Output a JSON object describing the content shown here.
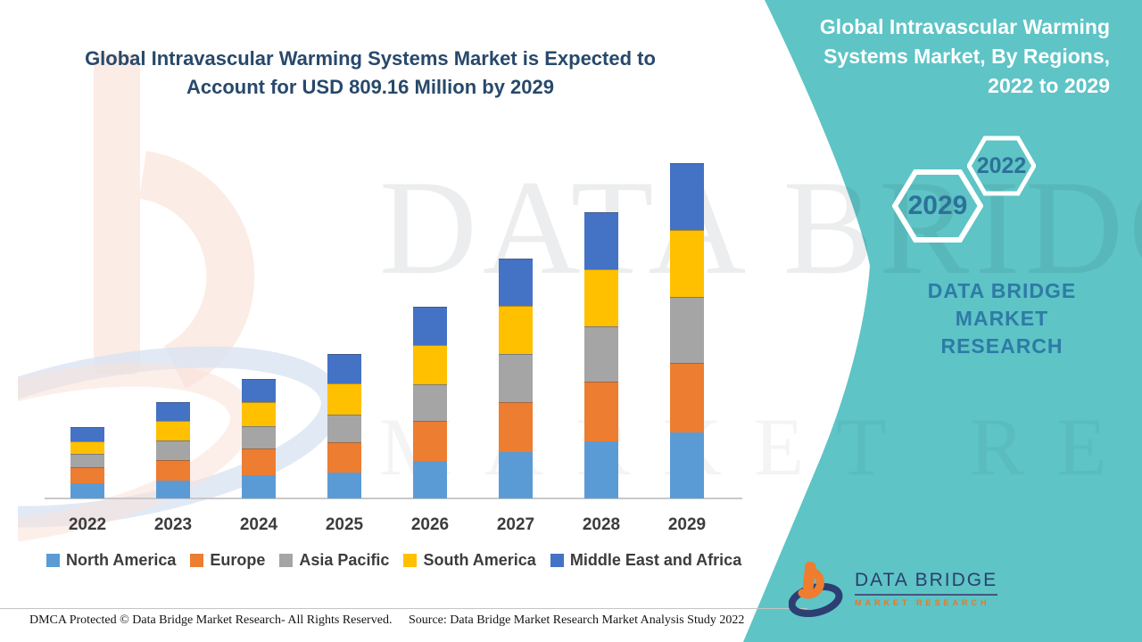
{
  "header": {
    "left_title_line1": "Global Intravascular Warming Systems Market is Expected to",
    "left_title_line2": "Account for USD 809.16 Million by 2029"
  },
  "side_panel": {
    "title": "Global Intravascular Warming Systems Market, By Regions, 2022 to 2029",
    "hex_small_label": "2022",
    "hex_large_label": "2029",
    "brand_line1": "DATA BRIDGE MARKET",
    "brand_line2": "RESEARCH"
  },
  "watermark": {
    "line1": "DATA BRIDGE",
    "line2": "MARKET RESEARCH"
  },
  "logo": {
    "name": "DATA BRIDGE",
    "tagline": "MARKET RESEARCH"
  },
  "footer": {
    "dmca": "DMCA Protected © Data Bridge Market Research- All Rights Reserved.",
    "source": "Source: Data Bridge Market Research Market Analysis Study 2022"
  },
  "colors": {
    "teal_panel": "#5EC4C6",
    "title_navy": "#27496B",
    "panel_text_blue": "#2E7BA6",
    "hex_text": "#2D7199",
    "axis_label_gray": "#3C3C3C",
    "logo_navy": "#2C3E6E",
    "logo_orange": "#EE7D2F"
  },
  "chart_data": {
    "type": "bar",
    "stacked": true,
    "title": "Global Intravascular Warming Systems Market is Expected to Account for USD 809.16 Million by 2029",
    "xlabel": "",
    "ylabel": "",
    "unit": "USD Million",
    "grid": false,
    "y_axis_visible": false,
    "legend_position": "bottom",
    "categories": [
      "2022",
      "2023",
      "2024",
      "2025",
      "2026",
      "2027",
      "2028",
      "2029"
    ],
    "series": [
      {
        "name": "North America",
        "color": "#5B9BD5",
        "values": [
          36.6,
          43.0,
          56.0,
          62.4,
          90.4,
          111.9,
          137.7,
          159.2
        ]
      },
      {
        "name": "Europe",
        "color": "#ED7D31",
        "values": [
          38.7,
          49.5,
          64.6,
          73.2,
          96.8,
          120.5,
          144.2,
          167.9
        ]
      },
      {
        "name": "Asia Pacific",
        "color": "#A5A5A5",
        "values": [
          32.3,
          47.3,
          53.8,
          66.7,
          88.2,
          116.2,
          133.4,
          159.2
        ]
      },
      {
        "name": "South America",
        "color": "#FFC000",
        "values": [
          30.1,
          47.3,
          58.1,
          75.3,
          94.7,
          116.2,
          137.7,
          161.4
        ]
      },
      {
        "name": "Middle East and Africa",
        "color": "#4472C4",
        "values": [
          34.4,
          45.2,
          56.0,
          71.0,
          92.5,
          114.1,
          137.7,
          161.46
        ]
      }
    ],
    "totals": [
      172.1,
      232.3,
      288.5,
      348.6,
      462.6,
      578.9,
      690.7,
      809.16
    ]
  }
}
